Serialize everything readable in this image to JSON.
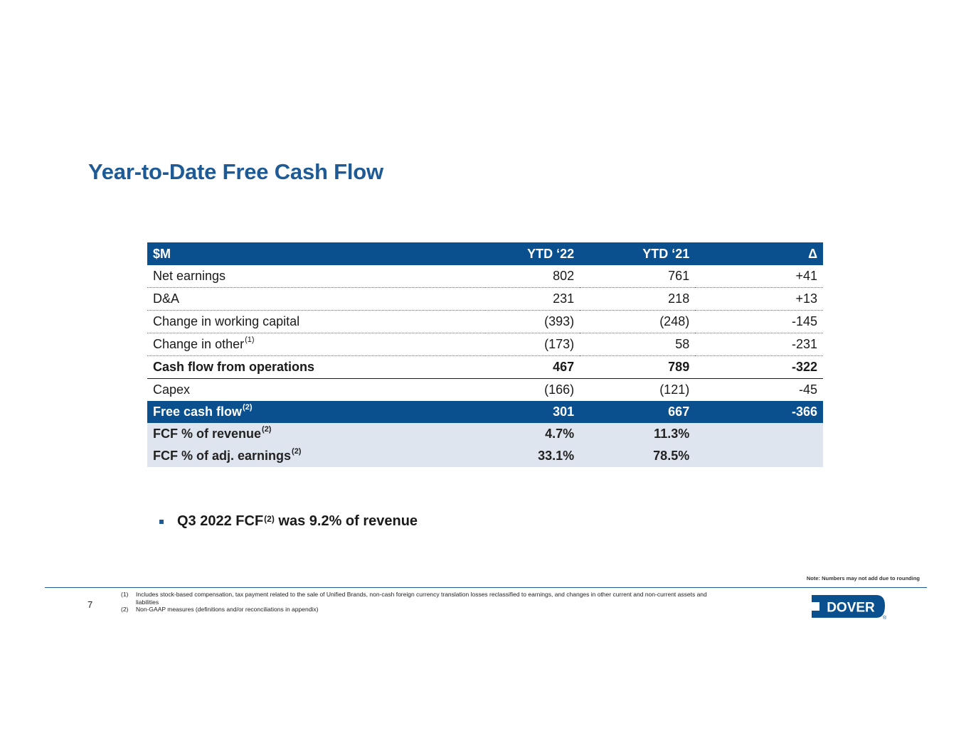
{
  "title": "Year-to-Date Free Cash Flow",
  "table": {
    "headers": [
      "$M",
      "YTD ‘22",
      "YTD ‘21",
      "Δ"
    ],
    "rows": [
      {
        "label": "Net earnings",
        "sup": "",
        "v1": "802",
        "v2": "761",
        "v3": "+41"
      },
      {
        "label": "D&A",
        "sup": "",
        "v1": "231",
        "v2": "218",
        "v3": "+13"
      },
      {
        "label": "Change in working capital",
        "sup": "",
        "v1": "(393)",
        "v2": "(248)",
        "v3": "-145"
      },
      {
        "label": "Change in other",
        "sup": "(1)",
        "v1": "(173)",
        "v2": "58",
        "v3": "-231"
      },
      {
        "label": "Cash flow from operations",
        "sup": "",
        "v1": "467",
        "v2": "789",
        "v3": "-322"
      },
      {
        "label": "Capex",
        "sup": "",
        "v1": "(166)",
        "v2": "(121)",
        "v3": "-45"
      },
      {
        "label": "Free cash flow",
        "sup": "(2)",
        "v1": "301",
        "v2": "667",
        "v3": "-366"
      },
      {
        "label": "FCF % of revenue",
        "sup": "(2)",
        "v1": "4.7%",
        "v2": "11.3%",
        "v3": ""
      },
      {
        "label": "FCF % of adj. earnings",
        "sup": "(2)",
        "v1": "33.1%",
        "v2": "78.5%",
        "v3": ""
      }
    ]
  },
  "bullet": {
    "pre": "Q3 2022 FCF",
    "sup": "(2)",
    "post": " was 9.2% of revenue"
  },
  "note": "Note: Numbers may not add due to rounding",
  "page_number": "7",
  "footnotes": [
    {
      "num": "(1)",
      "text": "Includes stock-based compensation, tax payment related to the sale of Unified Brands, non-cash foreign currency translation losses reclassified to earnings, and changes in other current and non-current assets and liabilities"
    },
    {
      "num": "(2)",
      "text": "Non-GAAP measures (definitions and/or reconciliations in appendix)"
    }
  ],
  "logo": {
    "text": "DOVER",
    "registered": "®",
    "color": "#0a4f8e"
  }
}
